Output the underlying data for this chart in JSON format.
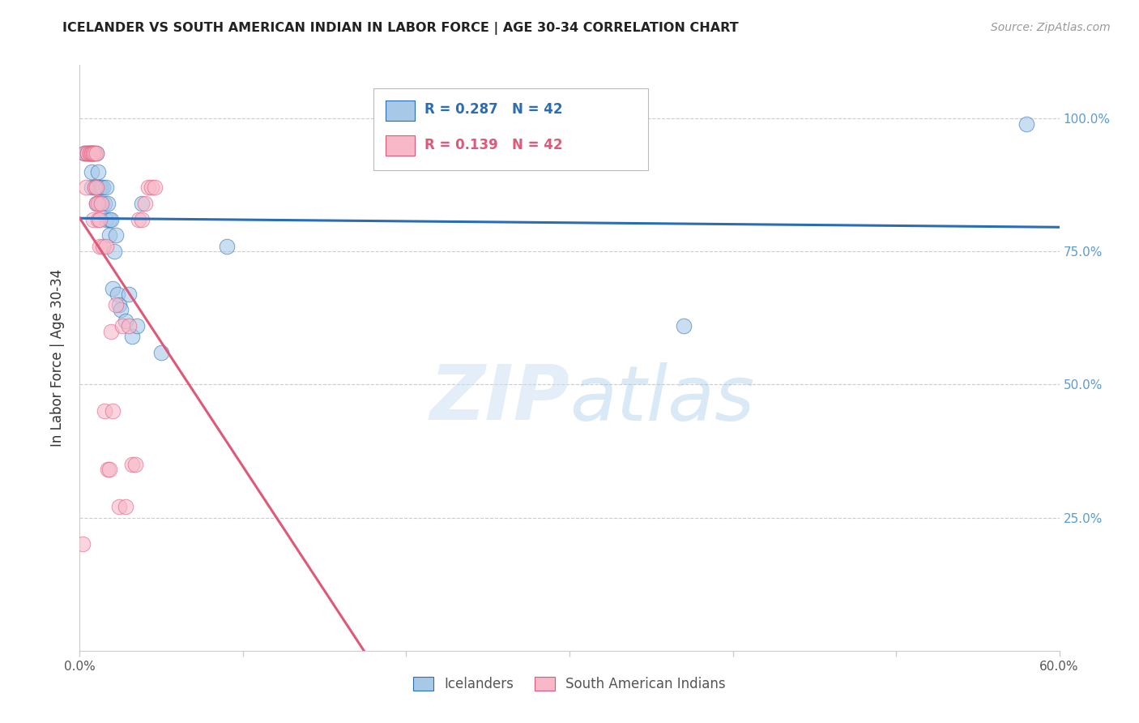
{
  "title": "ICELANDER VS SOUTH AMERICAN INDIAN IN LABOR FORCE | AGE 30-34 CORRELATION CHART",
  "source": "Source: ZipAtlas.com",
  "ylabel": "In Labor Force | Age 30-34",
  "xlim": [
    0.0,
    0.6
  ],
  "ylim": [
    0.0,
    1.1
  ],
  "blue_R": 0.287,
  "blue_N": 42,
  "pink_R": 0.139,
  "pink_N": 42,
  "blue_color": "#a8c8e8",
  "pink_color": "#f8b8c8",
  "blue_line_color": "#2a6db5",
  "pink_line_color": "#e05878",
  "grid_color": "#cccccc",
  "title_color": "#222222",
  "right_tick_color": "#5b9bd5",
  "blue_scatter_x": [
    0.003,
    0.004,
    0.005,
    0.006,
    0.006,
    0.007,
    0.007,
    0.008,
    0.008,
    0.009,
    0.01,
    0.01,
    0.01,
    0.011,
    0.011,
    0.012,
    0.012,
    0.013,
    0.013,
    0.014,
    0.015,
    0.016,
    0.016,
    0.017,
    0.018,
    0.018,
    0.019,
    0.02,
    0.021,
    0.022,
    0.023,
    0.024,
    0.025,
    0.028,
    0.03,
    0.032,
    0.035,
    0.038,
    0.05,
    0.09,
    0.37,
    0.58
  ],
  "blue_scatter_y": [
    0.935,
    0.935,
    0.935,
    0.935,
    0.935,
    0.87,
    0.9,
    0.935,
    0.935,
    0.87,
    0.935,
    0.87,
    0.84,
    0.87,
    0.9,
    0.87,
    0.84,
    0.87,
    0.84,
    0.87,
    0.84,
    0.87,
    0.81,
    0.84,
    0.81,
    0.78,
    0.81,
    0.68,
    0.75,
    0.78,
    0.67,
    0.65,
    0.64,
    0.62,
    0.67,
    0.59,
    0.61,
    0.84,
    0.56,
    0.76,
    0.61,
    0.99
  ],
  "pink_scatter_x": [
    0.002,
    0.003,
    0.004,
    0.005,
    0.005,
    0.006,
    0.006,
    0.007,
    0.007,
    0.008,
    0.008,
    0.008,
    0.009,
    0.009,
    0.01,
    0.01,
    0.01,
    0.011,
    0.011,
    0.012,
    0.012,
    0.013,
    0.014,
    0.015,
    0.016,
    0.017,
    0.018,
    0.019,
    0.02,
    0.022,
    0.024,
    0.026,
    0.028,
    0.03,
    0.032,
    0.034,
    0.036,
    0.038,
    0.04,
    0.042,
    0.044,
    0.046
  ],
  "pink_scatter_y": [
    0.2,
    0.935,
    0.87,
    0.935,
    0.935,
    0.935,
    0.935,
    0.935,
    0.935,
    0.935,
    0.935,
    0.81,
    0.935,
    0.87,
    0.935,
    0.87,
    0.84,
    0.81,
    0.84,
    0.76,
    0.81,
    0.84,
    0.76,
    0.45,
    0.76,
    0.34,
    0.34,
    0.6,
    0.45,
    0.65,
    0.27,
    0.61,
    0.27,
    0.61,
    0.35,
    0.35,
    0.81,
    0.81,
    0.84,
    0.87,
    0.87,
    0.87
  ]
}
